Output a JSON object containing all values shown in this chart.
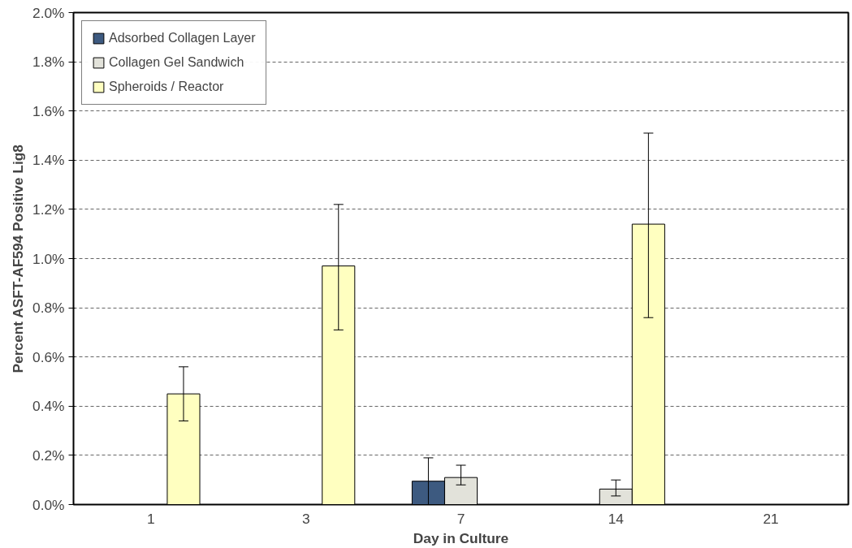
{
  "chart_data": {
    "type": "bar",
    "xlabel": "Day in Culture",
    "ylabel": "Percent ASFT-AF594 Positive Lig8",
    "categories": [
      "1",
      "3",
      "7",
      "14",
      "21"
    ],
    "series": [
      {
        "name": "Adsorbed Collagen Layer",
        "color": "#3d5a80",
        "values": [
          null,
          null,
          0.095,
          null,
          null
        ],
        "errors": [
          null,
          null,
          [
            0.0,
            0.19
          ],
          null,
          null
        ]
      },
      {
        "name": "Collagen Gel Sandwich",
        "color": "#e2e2da",
        "values": [
          null,
          null,
          0.11,
          0.063,
          null
        ],
        "errors": [
          null,
          null,
          [
            0.08,
            0.16
          ],
          [
            0.035,
            0.1
          ],
          null
        ]
      },
      {
        "name": "Spheroids / Reactor",
        "color": "#ffffc0",
        "values": [
          0.45,
          0.97,
          null,
          1.14,
          null
        ],
        "errors": [
          [
            0.34,
            0.56
          ],
          [
            0.71,
            1.22
          ],
          null,
          [
            0.76,
            1.51
          ],
          null
        ]
      }
    ],
    "ylim": [
      0,
      2.0
    ],
    "yticks": [
      {
        "value": 0,
        "label": "0.0%"
      },
      {
        "value": 0.2,
        "label": "0.2%"
      },
      {
        "value": 0.4,
        "label": "0.4%"
      },
      {
        "value": 0.6,
        "label": "0.6%"
      },
      {
        "value": 0.8,
        "label": "0.8%"
      },
      {
        "value": 1.0,
        "label": "1.0%"
      },
      {
        "value": 1.2,
        "label": "1.2%"
      },
      {
        "value": 1.4,
        "label": "1.4%"
      },
      {
        "value": 1.6,
        "label": "1.6%"
      },
      {
        "value": 1.8,
        "label": "1.8%"
      },
      {
        "value": 2.0,
        "label": "2.0%"
      }
    ],
    "grid": "y",
    "legend": "top left"
  }
}
